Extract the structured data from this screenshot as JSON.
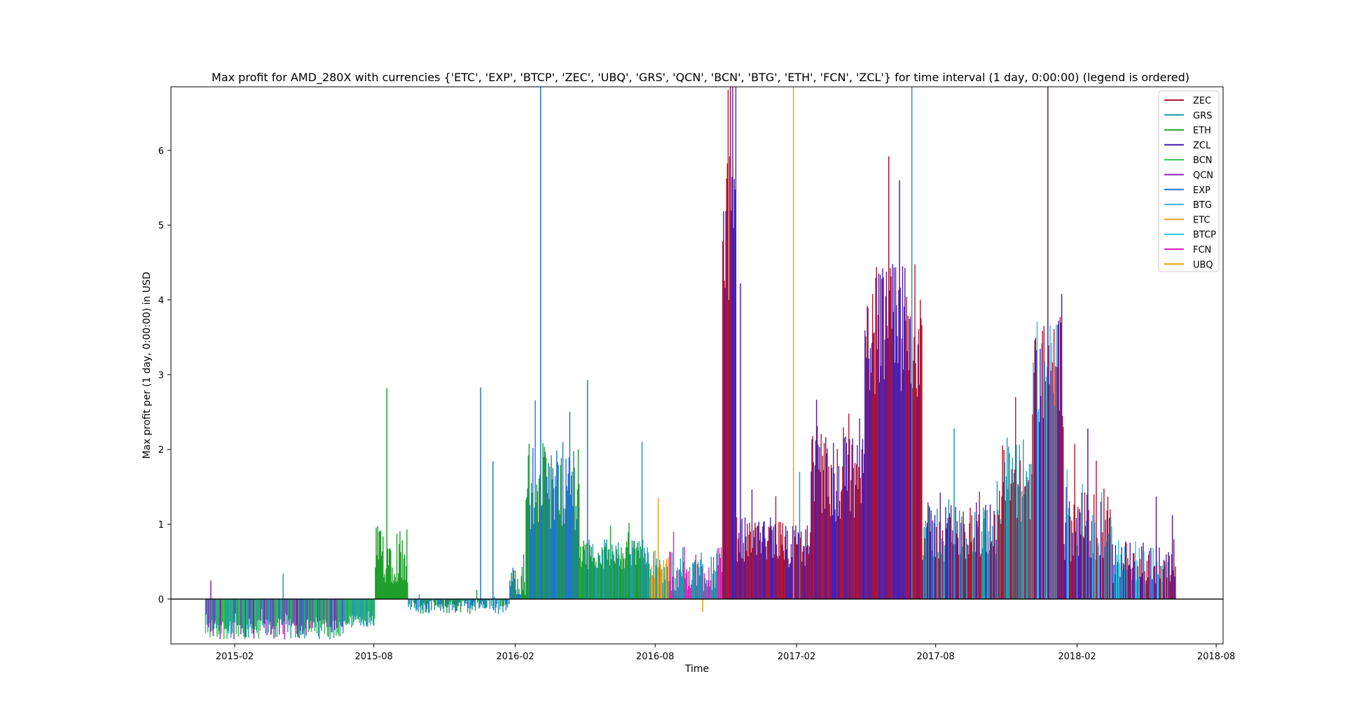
{
  "chart_data": {
    "type": "bar",
    "title": "Max profit for AMD_280X with currencies {'ETC', 'EXP', 'BTCP', 'ZEC', 'UBQ', 'GRS', 'QCN', 'BCN', 'BTG', 'ETH', 'FCN', 'ZCL'} for time interval (1 day, 0:00:00) (legend is ordered)",
    "xlabel": "Time",
    "ylabel": "Max profit per (1 day, 0:00:00) in USD",
    "x_ticks": [
      "2015-02",
      "2015-08",
      "2016-02",
      "2016-08",
      "2017-02",
      "2017-08",
      "2018-02",
      "2018-08"
    ],
    "y_ticks": [
      "0",
      "1",
      "2",
      "3",
      "4",
      "5",
      "6"
    ],
    "xlim": [
      "2014-11-10",
      "2018-08-10"
    ],
    "ylim": [
      -0.6,
      6.85
    ],
    "zero_line": true,
    "grid": false,
    "legend_position": "top-right",
    "legend": [
      {
        "name": "ZEC",
        "color": "#b5122e"
      },
      {
        "name": "GRS",
        "color": "#1f9bb0"
      },
      {
        "name": "ETH",
        "color": "#1e9e2a"
      },
      {
        "name": "ZCL",
        "color": "#4b1fb0"
      },
      {
        "name": "BCN",
        "color": "#2ebd4e"
      },
      {
        "name": "QCN",
        "color": "#8a1fb5"
      },
      {
        "name": "EXP",
        "color": "#1e73d6"
      },
      {
        "name": "BTG",
        "color": "#36b3e0"
      },
      {
        "name": "ETC",
        "color": "#e8a21a"
      },
      {
        "name": "BTCP",
        "color": "#1ec8e8"
      },
      {
        "name": "FCN",
        "color": "#e01eb5"
      },
      {
        "name": "UBQ",
        "color": "#d6a514"
      }
    ],
    "series_segments": [
      {
        "from": "2014-12-25",
        "to": "2015-06-25",
        "currencies": [
          "QCN",
          "BCN",
          "GRS"
        ],
        "base_value": -0.4,
        "variation": 0.14
      },
      {
        "from": "2015-06-25",
        "to": "2015-08-03",
        "currencies": [
          "BCN",
          "GRS"
        ],
        "base_value": -0.3,
        "variation": 0.08
      },
      {
        "from": "2015-08-03",
        "to": "2015-09-15",
        "currencies": [
          "ETH"
        ],
        "base_value": 0.6,
        "variation": 0.4
      },
      {
        "from": "2015-09-15",
        "to": "2016-01-25",
        "currencies": [
          "GRS",
          "ETH",
          "EXP"
        ],
        "base_value": -0.1,
        "variation": 0.1
      },
      {
        "from": "2016-01-25",
        "to": "2016-02-15",
        "currencies": [
          "ETH",
          "EXP"
        ],
        "base_value": 0.25,
        "variation": 0.2
      },
      {
        "from": "2016-02-15",
        "to": "2016-04-25",
        "currencies": [
          "ETH",
          "EXP"
        ],
        "base_value": 1.5,
        "variation": 0.6
      },
      {
        "from": "2016-04-25",
        "to": "2016-07-25",
        "currencies": [
          "ETH",
          "GRS"
        ],
        "base_value": 0.6,
        "variation": 0.2
      },
      {
        "from": "2016-07-25",
        "to": "2016-08-20",
        "currencies": [
          "GRS",
          "ETC",
          "UBQ"
        ],
        "base_value": 0.4,
        "variation": 0.2
      },
      {
        "from": "2016-08-20",
        "to": "2016-10-28",
        "currencies": [
          "GRS",
          "FCN"
        ],
        "base_value": 0.4,
        "variation": 0.3
      },
      {
        "from": "2016-10-28",
        "to": "2016-11-15",
        "currencies": [
          "ZEC",
          "ZCL"
        ],
        "base_value": 5.5,
        "variation": 1.5
      },
      {
        "from": "2016-11-15",
        "to": "2017-01-20",
        "currencies": [
          "ZCL",
          "ZEC"
        ],
        "base_value": 0.8,
        "variation": 0.3
      },
      {
        "from": "2017-01-20",
        "to": "2017-02-20",
        "currencies": [
          "ZEC",
          "ZCL"
        ],
        "base_value": 0.7,
        "variation": 0.3
      },
      {
        "from": "2017-02-20",
        "to": "2017-05-01",
        "currencies": [
          "ZEC",
          "ZCL"
        ],
        "base_value": 1.6,
        "variation": 0.6
      },
      {
        "from": "2017-05-01",
        "to": "2017-07-15",
        "currencies": [
          "ZEC",
          "ZCL"
        ],
        "base_value": 3.6,
        "variation": 0.9
      },
      {
        "from": "2017-07-15",
        "to": "2017-10-20",
        "currencies": [
          "ZEC",
          "ZCL",
          "GRS"
        ],
        "base_value": 0.9,
        "variation": 0.4
      },
      {
        "from": "2017-10-20",
        "to": "2017-12-05",
        "currencies": [
          "ZEC",
          "GRS"
        ],
        "base_value": 1.6,
        "variation": 0.6
      },
      {
        "from": "2017-12-05",
        "to": "2018-01-15",
        "currencies": [
          "ZEC",
          "ZCL",
          "BTG"
        ],
        "base_value": 3.0,
        "variation": 0.7
      },
      {
        "from": "2018-01-15",
        "to": "2018-03-20",
        "currencies": [
          "ZCL",
          "ZEC",
          "BTG"
        ],
        "base_value": 1.0,
        "variation": 0.5
      },
      {
        "from": "2018-03-20",
        "to": "2018-06-10",
        "currencies": [
          "ZEC",
          "ZCL",
          "BTCP"
        ],
        "base_value": 0.5,
        "variation": 0.3
      }
    ],
    "spikes": [
      {
        "date": "2015-01-01",
        "value": 0.25,
        "currency": "QCN"
      },
      {
        "date": "2015-04-05",
        "value": 0.34,
        "currency": "GRS"
      },
      {
        "date": "2015-08-18",
        "value": 2.82,
        "currency": "ETH"
      },
      {
        "date": "2015-12-18",
        "value": 2.83,
        "currency": "EXP"
      },
      {
        "date": "2016-01-03",
        "value": 1.84,
        "currency": "EXP"
      },
      {
        "date": "2016-03-05",
        "value": 6.85,
        "currency": "EXP"
      },
      {
        "date": "2016-05-05",
        "value": 2.93,
        "currency": "EXP"
      },
      {
        "date": "2016-07-15",
        "value": 2.1,
        "currency": "GRS"
      },
      {
        "date": "2016-08-05",
        "value": 1.35,
        "currency": "ETC"
      },
      {
        "date": "2016-10-02",
        "value": -0.17,
        "currency": "UBQ"
      },
      {
        "date": "2016-11-20",
        "value": 4.22,
        "currency": "ZCL"
      },
      {
        "date": "2017-01-28",
        "value": 6.85,
        "currency": "ETC"
      },
      {
        "date": "2017-02-05",
        "value": 1.7,
        "currency": "GRS"
      },
      {
        "date": "2017-06-01",
        "value": 5.92,
        "currency": "ZEC"
      },
      {
        "date": "2017-06-15",
        "value": 5.6,
        "currency": "ZCL"
      },
      {
        "date": "2017-07-01",
        "value": 6.85,
        "currency": "GRS"
      },
      {
        "date": "2017-08-25",
        "value": 2.28,
        "currency": "GRS"
      },
      {
        "date": "2017-12-25",
        "value": 6.85,
        "currency": "ZCL"
      },
      {
        "date": "2018-01-12",
        "value": 4.08,
        "currency": "ZCL"
      },
      {
        "date": "2018-02-15",
        "value": 2.28,
        "currency": "ZCL"
      },
      {
        "date": "2018-05-15",
        "value": 1.37,
        "currency": "ZCL"
      },
      {
        "date": "2018-06-05",
        "value": 1.12,
        "currency": "ZCL"
      }
    ]
  }
}
